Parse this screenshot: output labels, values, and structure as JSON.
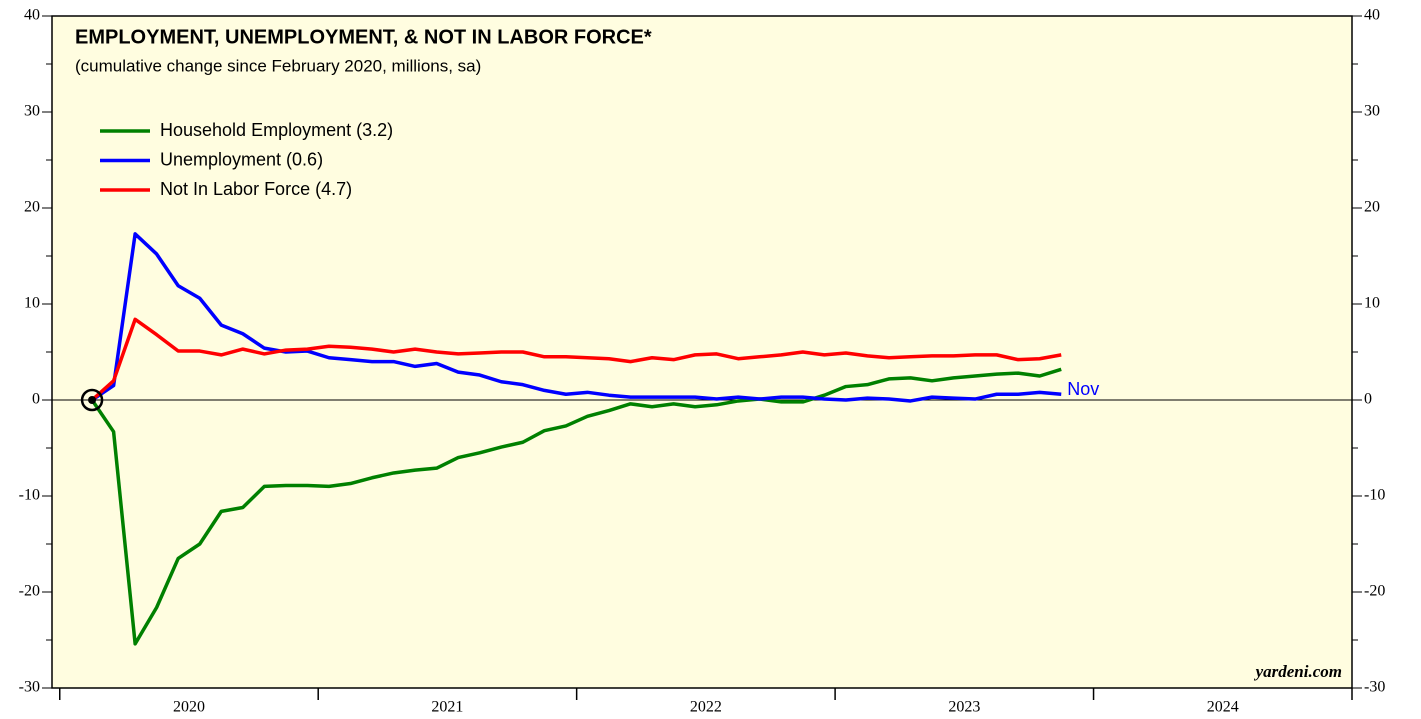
{
  "chart_data": {
    "type": "line",
    "title": "EMPLOYMENT, UNEMPLOYMENT, & NOT IN LABOR FORCE*",
    "subtitle": "(cumulative change since February 2020, millions, sa)",
    "annotation": "Nov",
    "source": "yardeni.com",
    "x": [
      2020.125,
      2020.2083,
      2020.2917,
      2020.375,
      2020.4583,
      2020.5417,
      2020.625,
      2020.7083,
      2020.7917,
      2020.875,
      2020.9583,
      2021.0417,
      2021.125,
      2021.2083,
      2021.2917,
      2021.375,
      2021.4583,
      2021.5417,
      2021.625,
      2021.7083,
      2021.7917,
      2021.875,
      2021.9583,
      2022.0417,
      2022.125,
      2022.2083,
      2022.2917,
      2022.375,
      2022.4583,
      2022.5417,
      2022.625,
      2022.7083,
      2022.7917,
      2022.875,
      2022.9583,
      2023.0417,
      2023.125,
      2023.2083,
      2023.2917,
      2023.375,
      2023.4583,
      2023.5417,
      2023.625,
      2023.7083,
      2023.7917,
      2023.875
    ],
    "series": [
      {
        "name": "Household Employment (3.2)",
        "color": "#008000",
        "values": [
          0,
          -3.3,
          -25.4,
          -21.6,
          -16.5,
          -15,
          -11.6,
          -11.2,
          -9,
          -8.9,
          -8.9,
          -9,
          -8.7,
          -8.1,
          -7.6,
          -7.3,
          -7.1,
          -6,
          -5.5,
          -4.9,
          -4.4,
          -3.2,
          -2.7,
          -1.7,
          -1.1,
          -0.4,
          -0.7,
          -0.4,
          -0.7,
          -0.5,
          -0.1,
          0.1,
          -0.2,
          -0.2,
          0.5,
          1.4,
          1.6,
          2.2,
          2.3,
          2.0,
          2.3,
          2.5,
          2.7,
          2.8,
          2.5,
          3.2
        ]
      },
      {
        "name": "Unemployment (0.6)",
        "color": "#0000ff",
        "values": [
          0,
          1.5,
          17.3,
          15.2,
          11.9,
          10.6,
          7.8,
          6.9,
          5.4,
          5.0,
          5.1,
          4.4,
          4.2,
          4.0,
          4.0,
          3.5,
          3.8,
          2.9,
          2.6,
          1.9,
          1.6,
          1.0,
          0.6,
          0.8,
          0.5,
          0.3,
          0.3,
          0.3,
          0.3,
          0.1,
          0.3,
          0.1,
          0.3,
          0.3,
          0.1,
          0.0,
          0.2,
          0.1,
          -0.1,
          0.3,
          0.2,
          0.1,
          0.6,
          0.6,
          0.8,
          0.6
        ]
      },
      {
        "name": "Not In Labor Force (4.7)",
        "color": "#ff0000",
        "values": [
          0,
          2.0,
          8.4,
          6.8,
          5.1,
          5.1,
          4.7,
          5.3,
          4.8,
          5.2,
          5.3,
          5.6,
          5.5,
          5.3,
          5.0,
          5.3,
          5.0,
          4.8,
          4.9,
          5.0,
          5.0,
          4.5,
          4.5,
          4.4,
          4.3,
          4.0,
          4.4,
          4.2,
          4.7,
          4.8,
          4.3,
          4.5,
          4.7,
          5.0,
          4.7,
          4.9,
          4.6,
          4.4,
          4.5,
          4.6,
          4.6,
          4.7,
          4.7,
          4.2,
          4.3,
          4.7
        ]
      }
    ],
    "xlim": [
      2019.97,
      2025
    ],
    "xticks": [
      2020,
      2021,
      2022,
      2023,
      2024,
      2025
    ],
    "xtick_labels": [
      "2020",
      "2021",
      "2022",
      "2023",
      "2024"
    ],
    "ylim": [
      -30,
      40
    ],
    "yticks": [
      -30,
      -20,
      -10,
      0,
      10,
      20,
      30,
      40
    ],
    "legend": "upper left",
    "background": "#fffde0"
  }
}
